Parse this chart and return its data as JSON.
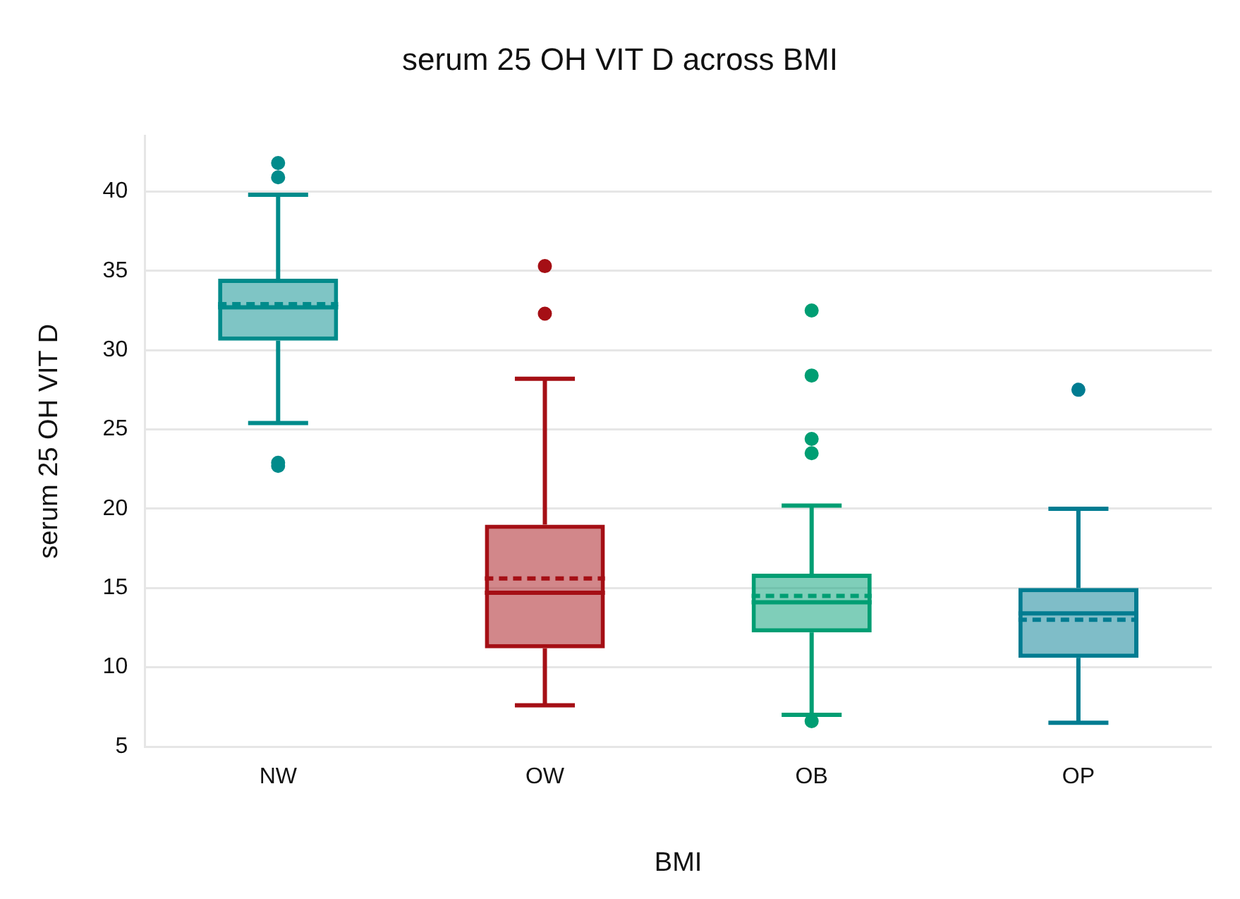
{
  "chart_data": {
    "type": "box",
    "title": "serum 25 OH VIT D across BMI",
    "xlabel": "BMI",
    "ylabel": "serum 25 OH VIT D",
    "categories": [
      "NW",
      "OW",
      "OB",
      "OP"
    ],
    "colors": [
      "#008b8b",
      "#a50f15",
      "#009e73",
      "#007c91"
    ],
    "boxes": [
      {
        "low": 25.4,
        "q1": 30.6,
        "median": 32.7,
        "q3": 34.5,
        "high": 39.8,
        "mean": 32.9,
        "outliers": [
          41.8,
          40.9,
          22.9,
          22.7
        ]
      },
      {
        "low": 7.6,
        "q1": 11.2,
        "median": 14.7,
        "q3": 19.0,
        "high": 28.2,
        "mean": 15.6,
        "outliers": [
          35.3,
          32.3
        ]
      },
      {
        "low": 7.0,
        "q1": 12.2,
        "median": 14.1,
        "q3": 15.9,
        "high": 20.2,
        "mean": 14.5,
        "outliers": [
          32.5,
          28.4,
          24.4,
          23.5,
          6.6
        ]
      },
      {
        "low": 6.5,
        "q1": 10.6,
        "median": 13.4,
        "q3": 15.0,
        "high": 20.0,
        "mean": 13.0,
        "outliers": [
          27.5
        ]
      }
    ],
    "ylim": [
      5,
      43.5
    ],
    "yticks": [
      5,
      10,
      15,
      20,
      25,
      30,
      35,
      40
    ],
    "grid": "y",
    "legend": false
  }
}
